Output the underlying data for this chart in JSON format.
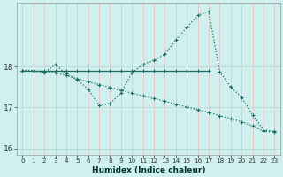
{
  "xlabel": "Humidex (Indice chaleur)",
  "ylabel": "",
  "background_color": "#cff0ee",
  "grid_color_h": "#b8d8d4",
  "grid_color_v": "#e8c8c8",
  "line_color": "#1a6b60",
  "xlim": [
    -0.5,
    23.5
  ],
  "ylim": [
    15.85,
    19.55
  ],
  "yticks": [
    16,
    17,
    18
  ],
  "xticks": [
    0,
    1,
    2,
    3,
    4,
    5,
    6,
    7,
    8,
    9,
    10,
    11,
    12,
    13,
    14,
    15,
    16,
    17,
    18,
    19,
    20,
    21,
    22,
    23
  ],
  "series1_x": [
    0,
    1,
    2,
    3,
    4,
    5,
    6,
    7,
    8,
    9,
    10,
    11,
    12,
    13,
    14,
    15,
    16,
    17
  ],
  "series1_y": [
    17.9,
    17.9,
    17.9,
    17.9,
    17.9,
    17.9,
    17.9,
    17.9,
    17.9,
    17.9,
    17.9,
    17.9,
    17.9,
    17.9,
    17.9,
    17.9,
    17.9,
    17.9
  ],
  "series2_x": [
    0,
    1,
    2,
    3,
    4,
    5,
    6,
    7,
    8,
    9,
    10,
    11,
    12,
    13,
    14,
    15,
    16,
    17,
    18,
    19,
    20,
    21,
    22,
    23
  ],
  "series2_y": [
    17.9,
    17.9,
    17.85,
    18.05,
    17.82,
    17.68,
    17.45,
    17.05,
    17.1,
    17.35,
    17.85,
    18.05,
    18.15,
    18.3,
    18.65,
    18.95,
    19.25,
    19.35,
    17.88,
    17.5,
    17.25,
    16.82,
    16.45,
    16.42
  ],
  "series3_x": [
    0,
    1,
    2,
    3,
    4,
    5,
    6,
    7,
    8,
    9,
    10,
    11,
    12,
    13,
    14,
    15,
    16,
    17,
    18,
    19,
    20,
    21,
    22,
    23
  ],
  "series3_y": [
    17.9,
    17.9,
    17.88,
    17.85,
    17.78,
    17.7,
    17.63,
    17.56,
    17.49,
    17.42,
    17.35,
    17.28,
    17.22,
    17.15,
    17.08,
    17.01,
    16.95,
    16.88,
    16.8,
    16.73,
    16.65,
    16.55,
    16.42,
    16.4
  ]
}
